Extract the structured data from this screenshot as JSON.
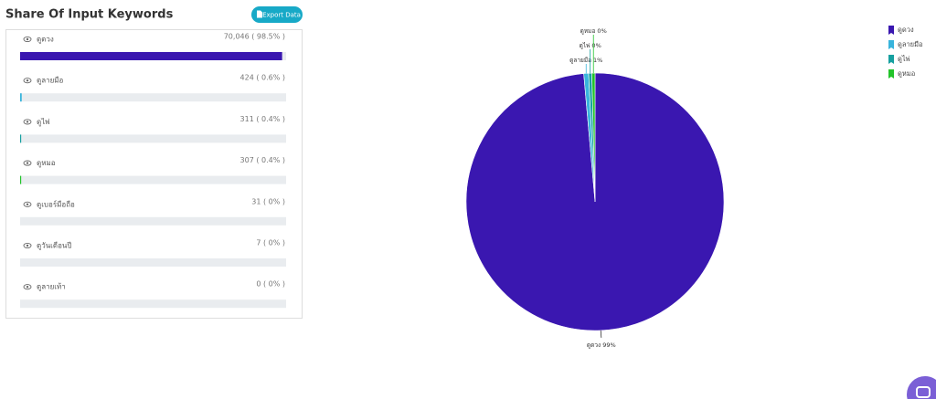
{
  "header": {
    "title": "Share Of Input Keywords",
    "export_button": "Export Data"
  },
  "keywords": [
    {
      "keyword": "ดูดวง",
      "label": "70,046 ( 98.5% )",
      "share": 98.5,
      "color": "#3a17b0"
    },
    {
      "keyword": "ดูลายมือ",
      "label": "424 ( 0.6% )",
      "share": 0.6,
      "color": "#38b4dc"
    },
    {
      "keyword": "ดูไพ่",
      "label": "311 ( 0.4% )",
      "share": 0.4,
      "color": "#16a0a0"
    },
    {
      "keyword": "ดูหมอ",
      "label": "307 ( 0.4% )",
      "share": 0.4,
      "color": "#22c42a"
    },
    {
      "keyword": "ดูเบอร์มือถือ",
      "label": "31 ( 0% )",
      "share": 0
    },
    {
      "keyword": "ดูวันเดือนปี",
      "label": "7 ( 0% )",
      "share": 0
    },
    {
      "keyword": "ดูลายเท้า",
      "label": "0 ( 0% )",
      "share": 0
    }
  ],
  "chart_data": {
    "type": "pie",
    "categories": [
      "ดูดวง",
      "ดูลายมือ",
      "ดูไพ่",
      "ดูหมอ"
    ],
    "values": [
      98.5,
      0.6,
      0.4,
      0.4
    ],
    "value_labels": [
      "ดูดวง 99%",
      "ดูลายมือ 1%",
      "ดูไพ่ 0%",
      "ดูหมอ 0%"
    ],
    "colors": [
      "#3a17b0",
      "#38b4dc",
      "#16a0a0",
      "#22c42a"
    ],
    "legend": "top-right"
  }
}
